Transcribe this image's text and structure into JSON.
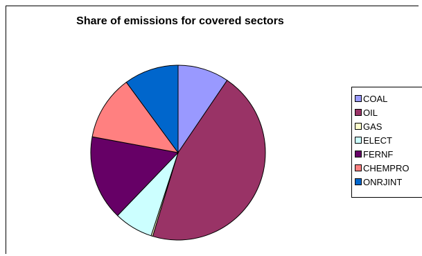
{
  "chart_data": {
    "type": "pie",
    "title": "Share of emissions for covered sectors",
    "categories": [
      "COAL",
      "OIL",
      "GAS",
      "ELECT",
      "FERNF",
      "CHEMPRO",
      "ONRJINT"
    ],
    "values": [
      9.5,
      45.2,
      0.3,
      7.2,
      15.7,
      12.0,
      10.1
    ],
    "colors": [
      "#9999FF",
      "#993366",
      "#FFFFCC",
      "#CCFFFF",
      "#660066",
      "#FF8080",
      "#0066CC"
    ],
    "legend_position": "right",
    "start_angle_deg": 0,
    "direction": "clockwise"
  }
}
